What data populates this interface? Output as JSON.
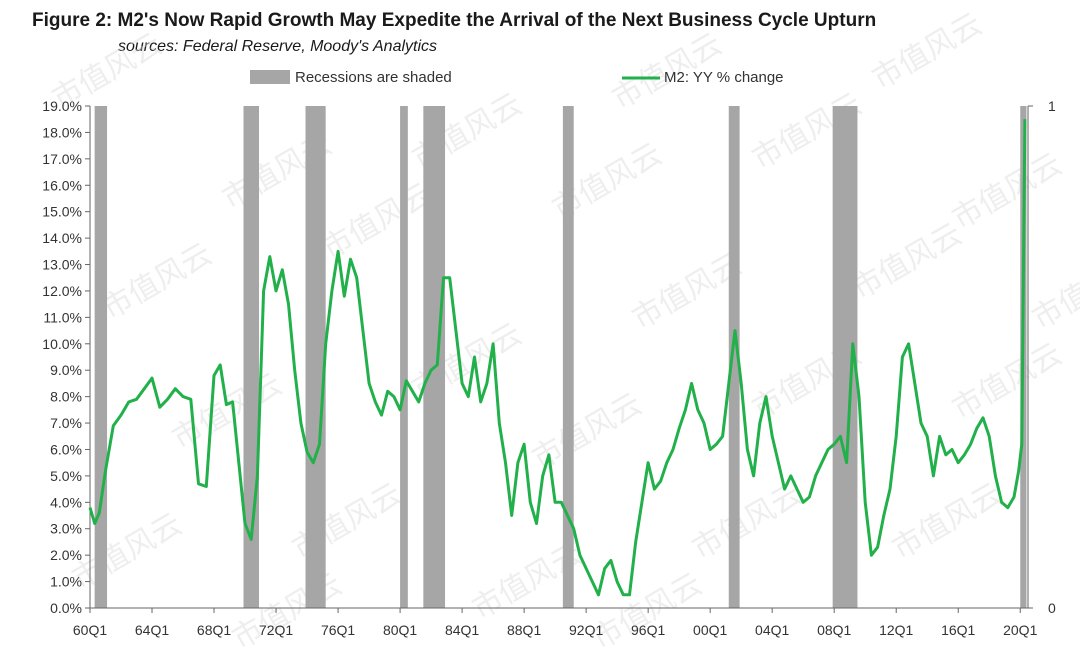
{
  "header": {
    "title": "Figure 2: M2's Now Rapid Growth May Expedite the Arrival of the Next Business Cycle Upturn",
    "subtitle": "sources: Federal Reserve, Moody's Analytics"
  },
  "watermark": "市值风云",
  "colors": {
    "line": "#22b04b",
    "recession": "#a6a6a6",
    "axis": "#666666",
    "text": "#333333"
  },
  "chart_data": {
    "type": "line",
    "legend": {
      "position": "top",
      "entries": [
        "Recessions are shaded",
        "M2: YY % change"
      ]
    },
    "x_ticks": [
      "60Q1",
      "64Q1",
      "68Q1",
      "72Q1",
      "76Q1",
      "80Q1",
      "84Q1",
      "88Q1",
      "92Q1",
      "96Q1",
      "00Q1",
      "04Q1",
      "08Q1",
      "12Q1",
      "16Q1",
      "20Q1"
    ],
    "x_range": [
      1960.0,
      2020.5
    ],
    "ylim_left": [
      0,
      19
    ],
    "y_ticks_left": [
      "0.0%",
      "1.0%",
      "2.0%",
      "3.0%",
      "4.0%",
      "5.0%",
      "6.0%",
      "7.0%",
      "8.0%",
      "9.0%",
      "10.0%",
      "11.0%",
      "12.0%",
      "13.0%",
      "14.0%",
      "15.0%",
      "16.0%",
      "17.0%",
      "18.0%",
      "19.0%"
    ],
    "ylim_right": [
      0,
      1
    ],
    "y_ticks_right": [
      "0",
      "1"
    ],
    "recessions": [
      [
        1960.3,
        1961.1
      ],
      [
        1969.9,
        1970.9
      ],
      [
        1973.9,
        1975.2
      ],
      [
        1980.0,
        1980.5
      ],
      [
        1981.5,
        1982.9
      ],
      [
        1990.5,
        1991.2
      ],
      [
        2001.2,
        2001.9
      ],
      [
        2007.9,
        2009.5
      ],
      [
        2020.0,
        2020.4
      ]
    ],
    "series": [
      {
        "name": "M2: YY % change",
        "x": [
          1960.0,
          1960.3,
          1960.6,
          1961.0,
          1961.5,
          1962.0,
          1962.5,
          1963.0,
          1963.5,
          1964.0,
          1964.5,
          1965.0,
          1965.5,
          1966.0,
          1966.5,
          1967.0,
          1967.5,
          1968.0,
          1968.4,
          1968.8,
          1969.2,
          1969.6,
          1970.0,
          1970.4,
          1970.8,
          1971.2,
          1971.6,
          1972.0,
          1972.4,
          1972.8,
          1973.2,
          1973.6,
          1974.0,
          1974.4,
          1974.8,
          1975.2,
          1975.6,
          1976.0,
          1976.4,
          1976.8,
          1977.2,
          1977.6,
          1978.0,
          1978.4,
          1978.8,
          1979.2,
          1979.6,
          1980.0,
          1980.4,
          1980.8,
          1981.2,
          1981.6,
          1982.0,
          1982.4,
          1982.8,
          1983.2,
          1983.6,
          1984.0,
          1984.4,
          1984.8,
          1985.2,
          1985.6,
          1986.0,
          1986.4,
          1986.8,
          1987.2,
          1987.6,
          1988.0,
          1988.4,
          1988.8,
          1989.2,
          1989.6,
          1990.0,
          1990.4,
          1990.8,
          1991.2,
          1991.6,
          1992.0,
          1992.4,
          1992.8,
          1993.2,
          1993.6,
          1994.0,
          1994.4,
          1994.8,
          1995.2,
          1995.6,
          1996.0,
          1996.4,
          1996.8,
          1997.2,
          1997.6,
          1998.0,
          1998.4,
          1998.8,
          1999.2,
          1999.6,
          2000.0,
          2000.4,
          2000.8,
          2001.2,
          2001.6,
          2002.0,
          2002.4,
          2002.8,
          2003.2,
          2003.6,
          2004.0,
          2004.4,
          2004.8,
          2005.2,
          2005.6,
          2006.0,
          2006.4,
          2006.8,
          2007.2,
          2007.6,
          2008.0,
          2008.4,
          2008.8,
          2009.2,
          2009.6,
          2010.0,
          2010.4,
          2010.8,
          2011.2,
          2011.6,
          2012.0,
          2012.4,
          2012.8,
          2013.2,
          2013.6,
          2014.0,
          2014.4,
          2014.8,
          2015.2,
          2015.6,
          2016.0,
          2016.4,
          2016.8,
          2017.2,
          2017.6,
          2018.0,
          2018.4,
          2018.8,
          2019.2,
          2019.6,
          2019.9,
          2020.1,
          2020.3
        ],
        "values": [
          3.8,
          3.2,
          3.6,
          5.2,
          6.9,
          7.3,
          7.8,
          7.9,
          8.3,
          8.7,
          7.6,
          7.9,
          8.3,
          8.0,
          7.9,
          4.7,
          4.6,
          8.8,
          9.2,
          7.7,
          7.8,
          5.5,
          3.2,
          2.6,
          5.0,
          12.0,
          13.3,
          12.0,
          12.8,
          11.5,
          9.0,
          7.0,
          5.9,
          5.5,
          6.2,
          10.0,
          12.0,
          13.5,
          11.8,
          13.2,
          12.5,
          10.5,
          8.5,
          7.8,
          7.3,
          8.2,
          8.0,
          7.5,
          8.6,
          8.2,
          7.8,
          8.5,
          9.0,
          9.2,
          12.5,
          12.5,
          10.5,
          8.5,
          8.0,
          9.5,
          7.8,
          8.5,
          10.0,
          7.0,
          5.5,
          3.5,
          5.5,
          6.2,
          4.0,
          3.2,
          5.0,
          5.8,
          4.0,
          4.0,
          3.5,
          3.0,
          2.0,
          1.5,
          1.0,
          0.5,
          1.5,
          1.8,
          1.0,
          0.5,
          0.5,
          2.5,
          4.0,
          5.5,
          4.5,
          4.8,
          5.5,
          6.0,
          6.8,
          7.5,
          8.5,
          7.5,
          7.0,
          6.0,
          6.2,
          6.5,
          8.5,
          10.5,
          8.5,
          6.0,
          5.0,
          7.0,
          8.0,
          6.5,
          5.5,
          4.5,
          5.0,
          4.5,
          4.0,
          4.2,
          5.0,
          5.5,
          6.0,
          6.2,
          6.5,
          5.5,
          10.0,
          8.0,
          4.0,
          2.0,
          2.3,
          3.5,
          4.5,
          6.5,
          9.5,
          10.0,
          8.5,
          7.0,
          6.5,
          5.0,
          6.5,
          5.8,
          6.0,
          5.5,
          5.8,
          6.2,
          6.8,
          7.2,
          6.5,
          5.0,
          4.0,
          3.8,
          4.2,
          5.2,
          6.2,
          18.5
        ]
      }
    ]
  }
}
